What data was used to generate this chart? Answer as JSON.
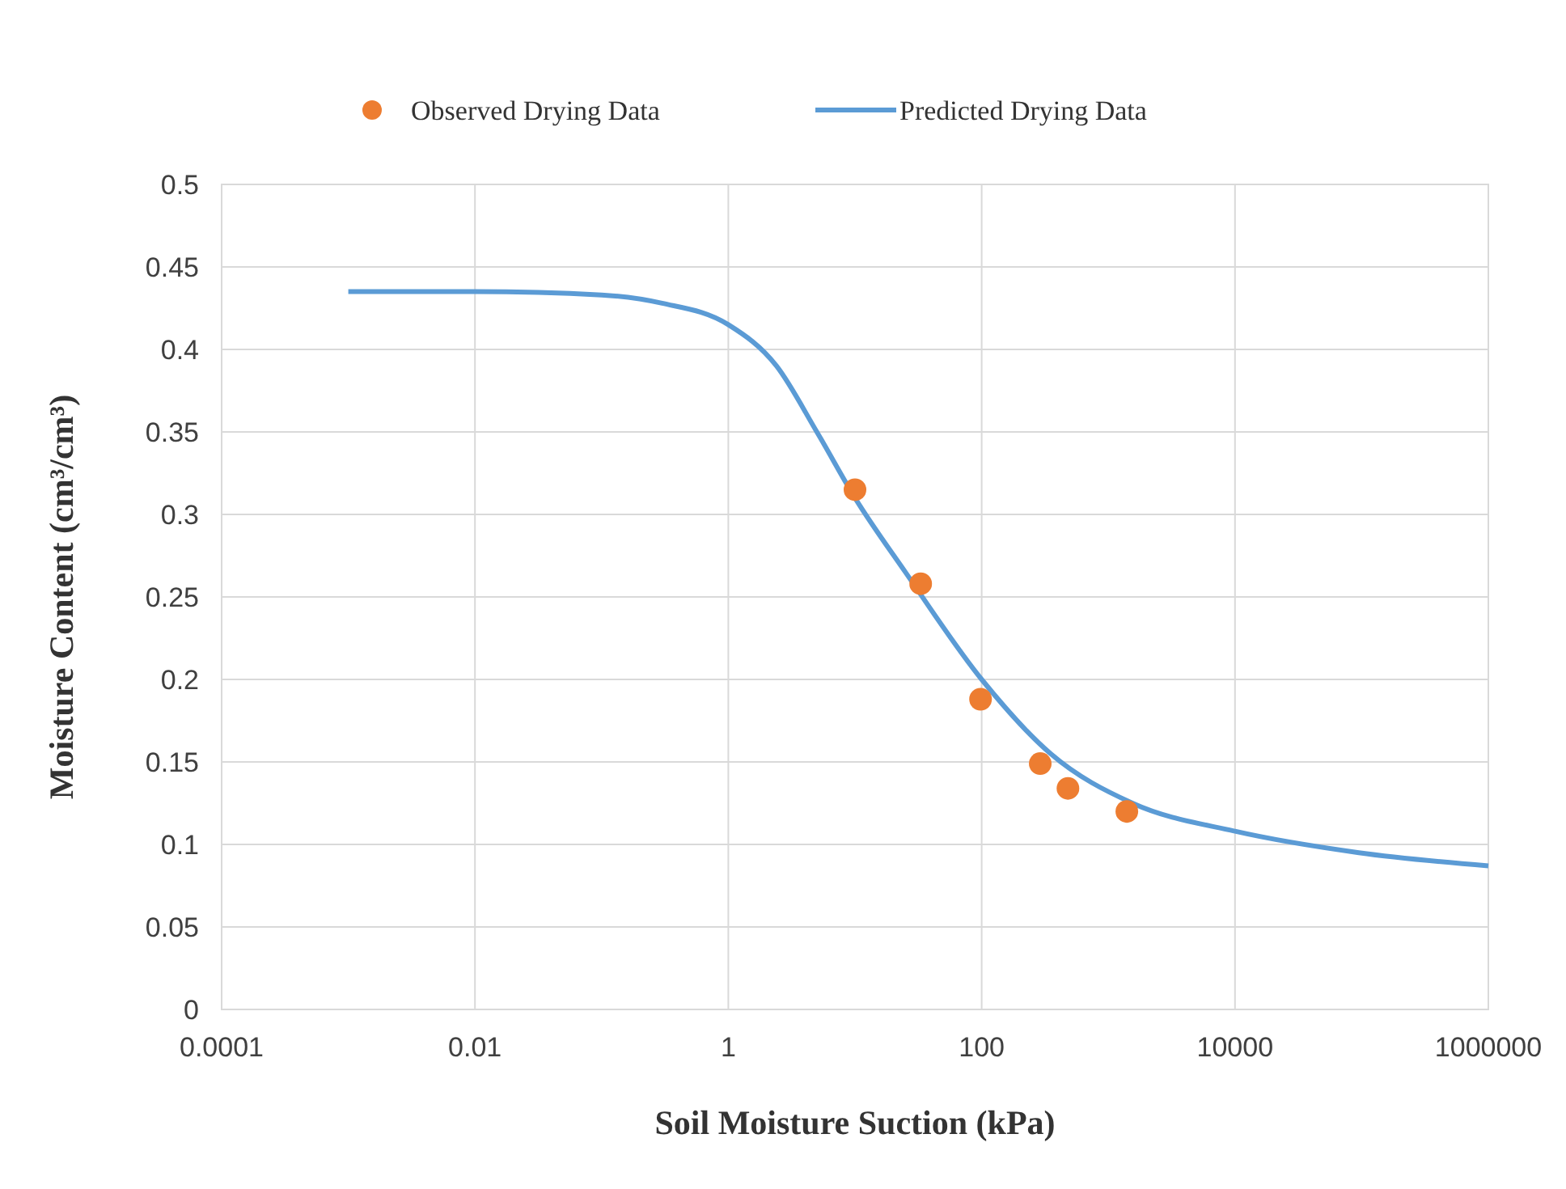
{
  "chart_data": {
    "type": "scatter",
    "xlabel": "Soil Moisture Suction (kPa)",
    "ylabel": "Moisture Content (cm³/cm³)",
    "log": "x",
    "grid": true,
    "legend": "top",
    "xlim": [
      0.0001,
      1000000
    ],
    "xticks": [
      0.0001,
      0.01,
      1,
      100,
      10000,
      1000000
    ],
    "ylim": [
      0,
      0.5
    ],
    "yticks": [
      0,
      0.05,
      0.1,
      0.15,
      0.2,
      0.25,
      0.3,
      0.35,
      0.4,
      0.45,
      0.5
    ],
    "series": [
      {
        "name": "Observed Drying Data",
        "marker": "circle",
        "color": "#ed7d31",
        "x": [
          10,
          33,
          98,
          290,
          480,
          1400
        ],
        "values": [
          0.315,
          0.258,
          0.188,
          0.149,
          0.134,
          0.12
        ]
      },
      {
        "name": "Predicted Drying Data",
        "type": "line",
        "marker": "none",
        "color": "#5b9bd5",
        "x": [
          0.001,
          0.01,
          0.1,
          0.3,
          1,
          2.4,
          5,
          10,
          25,
          100,
          350,
          1550,
          10000,
          95000,
          1000000
        ],
        "values": [
          0.435,
          0.435,
          0.433,
          0.428,
          0.415,
          0.39,
          0.35,
          0.31,
          0.265,
          0.2,
          0.155,
          0.125,
          0.108,
          0.095,
          0.087
        ]
      }
    ]
  }
}
